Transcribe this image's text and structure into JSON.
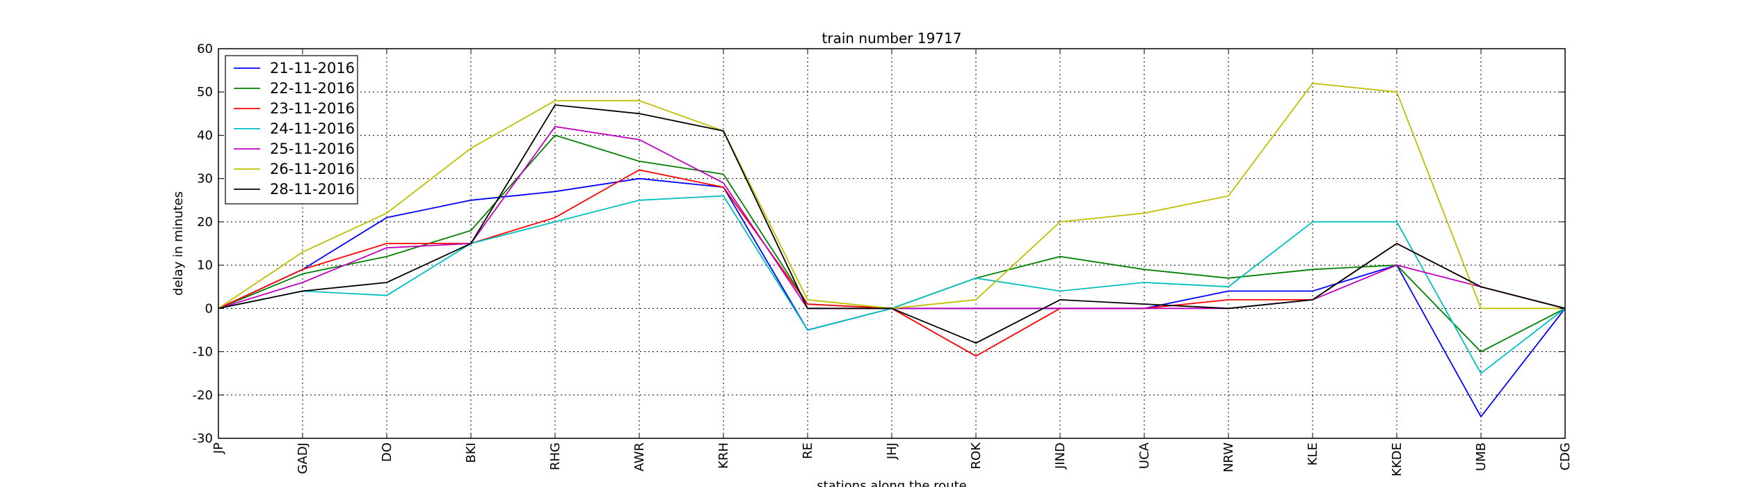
{
  "chart_data": {
    "type": "line",
    "title": "train number 19717",
    "xlabel": "stations along the route",
    "ylabel": "delay in minutes",
    "categories": [
      "JP",
      "GADJ",
      "DO",
      "BKI",
      "RHG",
      "AWR",
      "KRH",
      "RE",
      "JHJ",
      "ROK",
      "JIND",
      "UCA",
      "NRW",
      "KLE",
      "KKDE",
      "UMB",
      "CDG"
    ],
    "ylim": [
      -30,
      60
    ],
    "yticks": [
      -30,
      -20,
      -10,
      0,
      10,
      20,
      30,
      40,
      50,
      60
    ],
    "grid": true,
    "legend_position": "top-left",
    "series": [
      {
        "name": "21-11-2016",
        "color": "#0000ff",
        "values": [
          0,
          9,
          21,
          25,
          27,
          30,
          28,
          -5,
          0,
          0,
          0,
          0,
          4,
          4,
          10,
          -25,
          0
        ]
      },
      {
        "name": "22-11-2016",
        "color": "#008000",
        "values": [
          0,
          8,
          12,
          18,
          40,
          34,
          31,
          1,
          0,
          7,
          12,
          9,
          7,
          9,
          10,
          -10,
          0
        ]
      },
      {
        "name": "23-11-2016",
        "color": "#ff0000",
        "values": [
          0,
          9,
          15,
          15,
          21,
          32,
          28,
          1,
          0,
          -11,
          0,
          0,
          2,
          2,
          15,
          5,
          0
        ]
      },
      {
        "name": "24-11-2016",
        "color": "#00bfbf",
        "values": [
          0,
          4,
          3,
          15,
          20,
          25,
          26,
          -5,
          0,
          7,
          4,
          6,
          5,
          20,
          20,
          -15,
          0
        ]
      },
      {
        "name": "25-11-2016",
        "color": "#bf00bf",
        "values": [
          0,
          6,
          14,
          15,
          42,
          39,
          29,
          0,
          0,
          0,
          0,
          0,
          0,
          2,
          10,
          5,
          0
        ]
      },
      {
        "name": "26-11-2016",
        "color": "#bfbf00",
        "values": [
          0,
          13,
          22,
          37,
          48,
          48,
          41,
          2,
          0,
          2,
          20,
          22,
          26,
          52,
          50,
          0,
          0
        ]
      },
      {
        "name": "28-11-2016",
        "color": "#000000",
        "values": [
          0,
          4,
          6,
          15,
          47,
          45,
          41,
          0,
          0,
          -8,
          2,
          1,
          0,
          2,
          15,
          5,
          0
        ]
      }
    ]
  }
}
